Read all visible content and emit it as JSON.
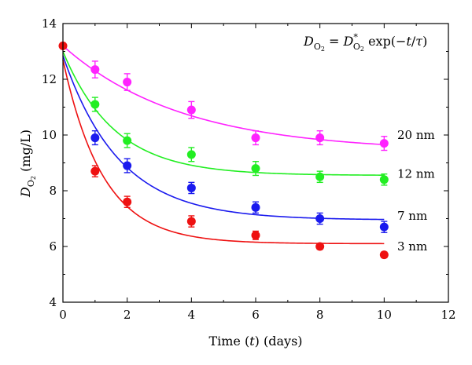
{
  "chart_data": {
    "type": "scatter",
    "title": "",
    "xlabel": "Time (t) (days)",
    "xlabel_parts": [
      "Time (",
      "t",
      ") (days)"
    ],
    "ylabel": "D_O2 (mg/L)",
    "ylabel_parts": [
      "D",
      "O",
      "2",
      " (mg/L)"
    ],
    "equation": "D_O2 = D*_O2 exp(−t/τ)",
    "equation_parts": [
      "D",
      "O",
      "2",
      " = ",
      "D",
      "*",
      "O",
      "2",
      " exp(−",
      "t",
      "/",
      "τ",
      ")"
    ],
    "xlim": [
      0,
      12
    ],
    "ylim": [
      4,
      14
    ],
    "xticks": [
      0,
      2,
      4,
      6,
      8,
      10,
      12
    ],
    "yticks": [
      4,
      6,
      8,
      10,
      12,
      14
    ],
    "grid": false,
    "series": [
      {
        "name": "20 nm",
        "color": "#ff22ff",
        "x": [
          1,
          2,
          4,
          6,
          8,
          10
        ],
        "y": [
          12.35,
          11.9,
          10.9,
          9.9,
          9.9,
          9.7
        ],
        "yerr": [
          0.3,
          0.3,
          0.3,
          0.25,
          0.25,
          0.25
        ],
        "fit": {
          "x0": 0,
          "y0": 13.2,
          "yinf": 9.4,
          "tau": 3.7
        }
      },
      {
        "name": "12 nm",
        "color": "#22ee22",
        "x": [
          1,
          2,
          4,
          6,
          8,
          10
        ],
        "y": [
          11.1,
          9.8,
          9.3,
          8.8,
          8.5,
          8.4
        ],
        "yerr": [
          0.25,
          0.25,
          0.25,
          0.25,
          0.2,
          0.2
        ],
        "fit": {
          "x0": 0,
          "y0": 13.0,
          "yinf": 8.55,
          "tau": 1.6
        }
      },
      {
        "name": "7 nm",
        "color": "#1a1aee",
        "x": [
          1,
          2,
          4,
          6,
          8,
          10
        ],
        "y": [
          9.9,
          8.9,
          8.1,
          7.4,
          7.0,
          6.7
        ],
        "yerr": [
          0.25,
          0.25,
          0.2,
          0.2,
          0.2,
          0.2
        ],
        "fit": {
          "x0": 0,
          "y0": 12.85,
          "yinf": 6.95,
          "tau": 1.75
        }
      },
      {
        "name": "3 nm",
        "color": "#ee1111",
        "x": [
          0,
          1,
          2,
          4,
          6,
          8,
          10
        ],
        "y": [
          13.2,
          8.7,
          7.6,
          6.9,
          6.4,
          6.0,
          5.7
        ],
        "yerr": [
          0,
          0.2,
          0.2,
          0.2,
          0.15,
          0.1,
          0.1
        ],
        "fit": {
          "x0": 0,
          "y0": 12.7,
          "yinf": 6.1,
          "tau": 1.25
        }
      }
    ]
  }
}
